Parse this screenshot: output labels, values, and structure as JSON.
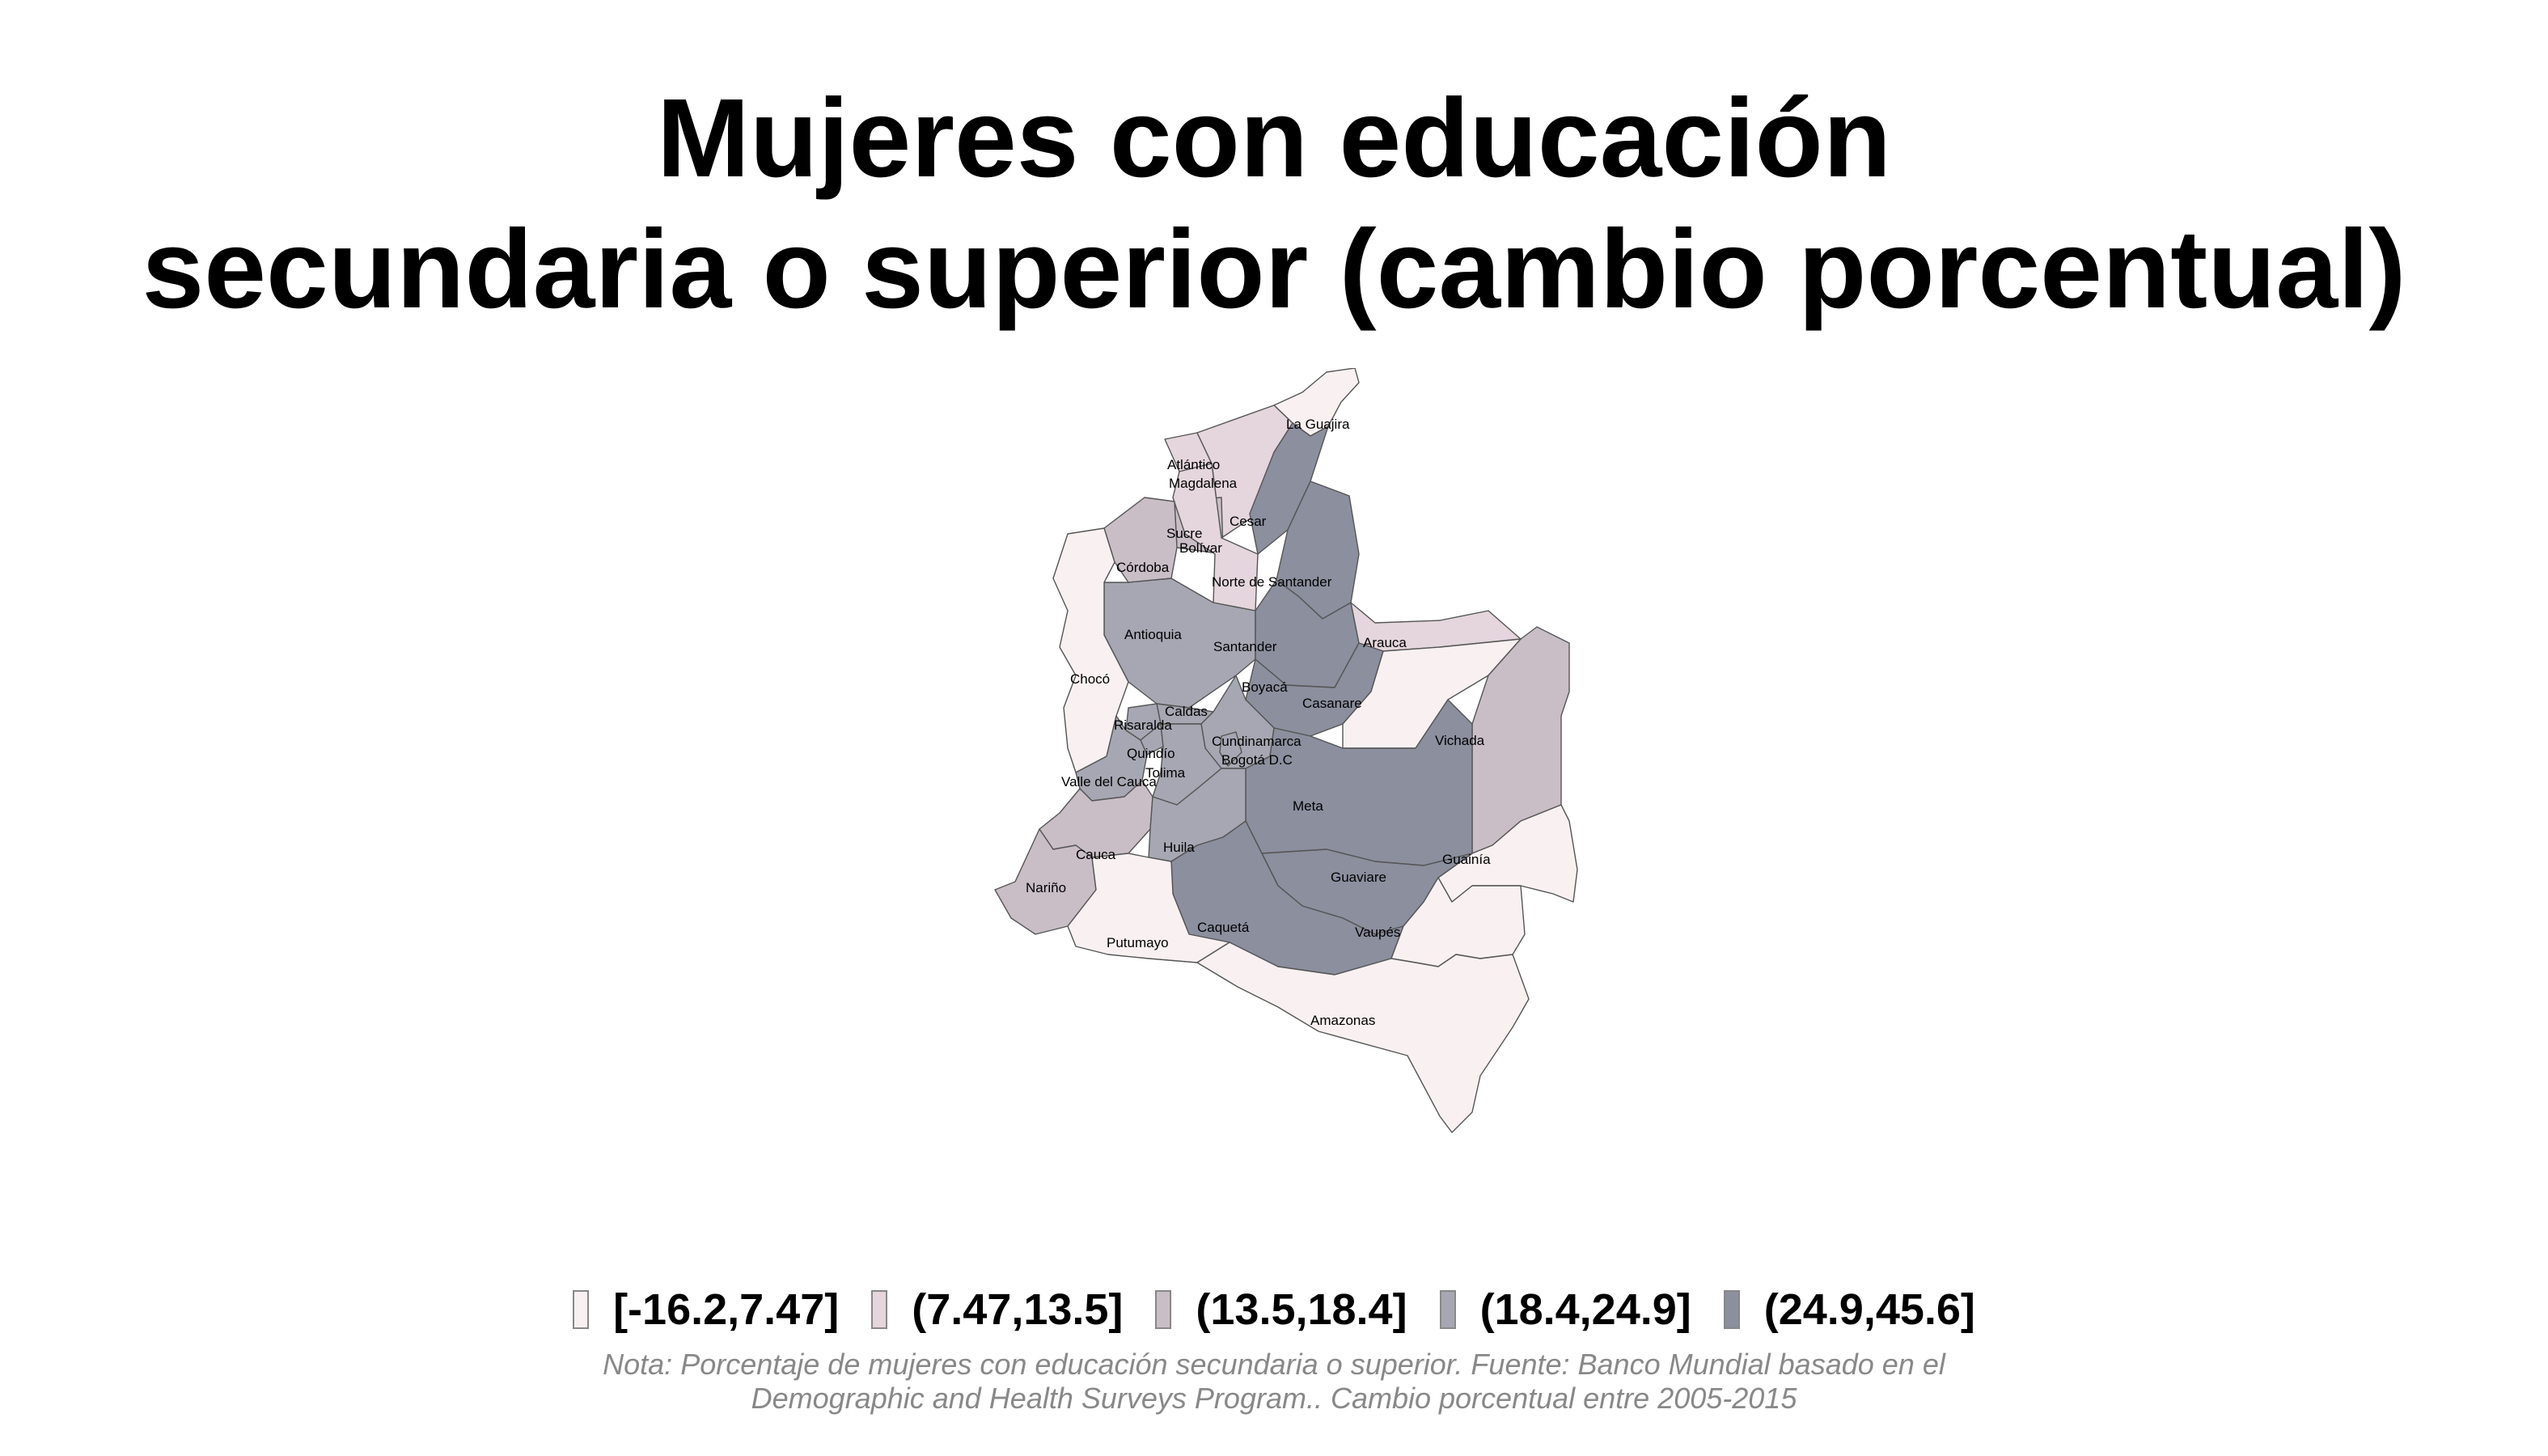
{
  "title": {
    "line1": "Mujeres con educación",
    "line2": "secundaria o superior (cambio porcentual)"
  },
  "colors": {
    "bin1": "#f9f1f1",
    "bin2": "#e4d6dc",
    "bin3": "#c9bec6",
    "bin4": "#a7a7b3",
    "bin5": "#8b8f9e",
    "border": "#555555"
  },
  "legend": [
    {
      "label": "[-16.2,7.47]",
      "color": "#f9f1f1"
    },
    {
      "label": "(7.47,13.5]",
      "color": "#e4d6dc"
    },
    {
      "label": "(13.5,18.4]",
      "color": "#c9bec6"
    },
    {
      "label": "(18.4,24.9]",
      "color": "#a7a7b3"
    },
    {
      "label": "(24.9,45.6]",
      "color": "#8b8f9e"
    }
  ],
  "regions": [
    {
      "name": "La Guajira",
      "bin": 1
    },
    {
      "name": "Atlántico",
      "bin": 2
    },
    {
      "name": "Magdalena",
      "bin": 2
    },
    {
      "name": "Cesar",
      "bin": 5
    },
    {
      "name": "Sucre",
      "bin": 3
    },
    {
      "name": "Bolívar",
      "bin": 2
    },
    {
      "name": "Córdoba",
      "bin": 3
    },
    {
      "name": "Norte de Santander",
      "bin": 5
    },
    {
      "name": "Antioquia",
      "bin": 4
    },
    {
      "name": "Santander",
      "bin": 5
    },
    {
      "name": "Arauca",
      "bin": 2
    },
    {
      "name": "Chocó",
      "bin": 1
    },
    {
      "name": "Boyacá",
      "bin": 5
    },
    {
      "name": "Casanare",
      "bin": 1
    },
    {
      "name": "Caldas",
      "bin": 4
    },
    {
      "name": "Risaralda",
      "bin": 4
    },
    {
      "name": "Cundinamarca",
      "bin": 4
    },
    {
      "name": "Vichada",
      "bin": 3
    },
    {
      "name": "Quindío",
      "bin": 4
    },
    {
      "name": "Bogotá D.C",
      "bin": 4
    },
    {
      "name": "Tolima",
      "bin": 4
    },
    {
      "name": "Valle del Cauca",
      "bin": 4
    },
    {
      "name": "Meta",
      "bin": 5
    },
    {
      "name": "Guainía",
      "bin": 1
    },
    {
      "name": "Cauca",
      "bin": 3
    },
    {
      "name": "Huila",
      "bin": 4
    },
    {
      "name": "Guaviare",
      "bin": 5
    },
    {
      "name": "Nariño",
      "bin": 3
    },
    {
      "name": "Caquetá",
      "bin": 5
    },
    {
      "name": "Vaupés",
      "bin": 1
    },
    {
      "name": "Putumayo",
      "bin": 1
    },
    {
      "name": "Amazonas",
      "bin": 1
    }
  ],
  "note": {
    "line1": "Nota: Porcentaje de mujeres con educación secundaria o superior. Fuente: Banco Mundial basado en el",
    "line2": "Demographic and Health Surveys Program.. Cambio porcentual entre 2005-2015"
  }
}
